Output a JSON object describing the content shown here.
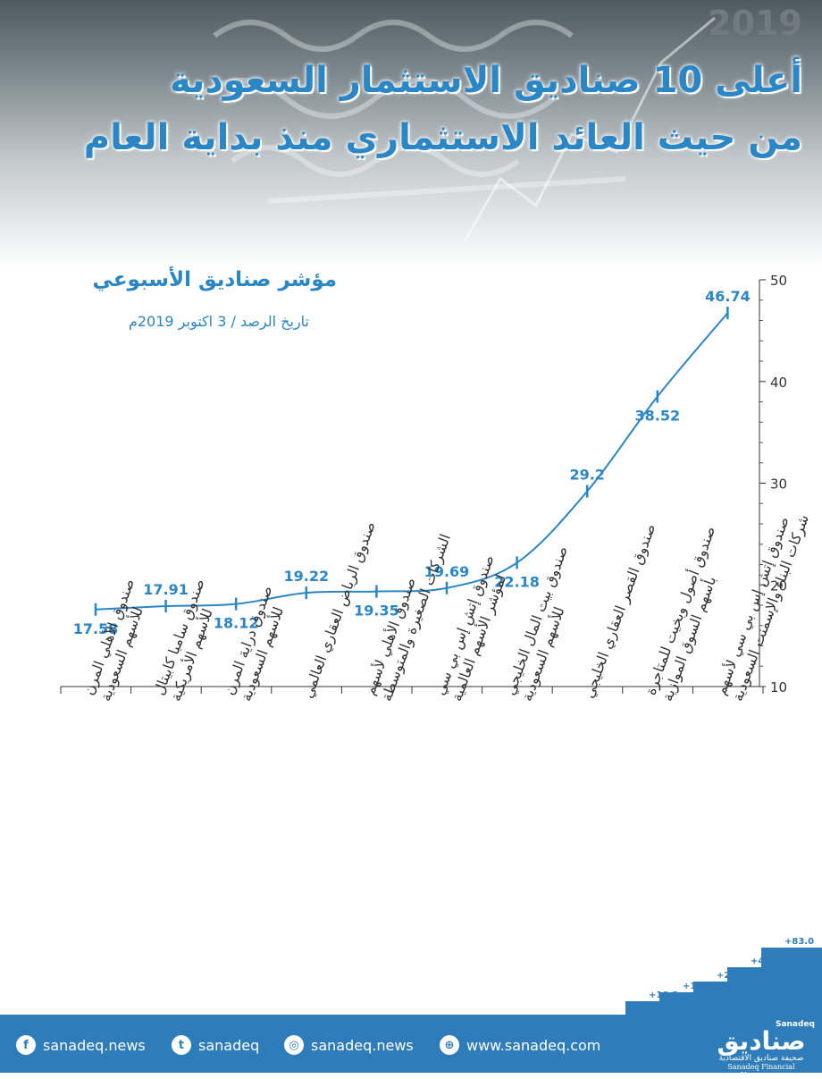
{
  "header": {
    "year": "2019",
    "title_line1": "أعلى 10 صناديق الاستثمار السعودية",
    "title_line2": "من حيث العائد الاستثماري منذ بداية العام"
  },
  "chart_meta": {
    "title": "مؤشر صناديق الأسبوعي",
    "subtitle": "تاريخ الرصد / 3 اكتوبر 2019م"
  },
  "chart_data": {
    "type": "line",
    "title": "مؤشر صناديق الأسبوعي",
    "subtitle": "تاريخ الرصد / 3 اكتوبر 2019م",
    "xlabel": "",
    "ylabel": "",
    "ylim": [
      10,
      50
    ],
    "yticks": [
      10,
      20,
      30,
      40,
      50
    ],
    "y_axis_side": "right",
    "grid": false,
    "categories": [
      [
        "صندوق الأهلي المرن",
        "للأسهم السعودية"
      ],
      [
        "صندوق سامبا كابيتال",
        "للأسهم الأمريكية"
      ],
      [
        "صندوق دراية المرن",
        "للأسهم السعودية"
      ],
      [
        "صندوق الرياض العقاري العالمي"
      ],
      [
        "صندوق الأهلي لأسهم",
        "الشركات الصغيرة والمتوسطة"
      ],
      [
        "صندوق إتش إس بي سي",
        "لمؤشر الأسهم العالمية"
      ],
      [
        "صندوق بيت المال الخليجي",
        "للأسهم السعودية"
      ],
      [
        "صندوق القصر العقاري الخليجي"
      ],
      [
        "صندوق أصول وبخيت للمتاجرة",
        "بأسهم السوق الموازية"
      ],
      [
        "صندوق إتش إس بي سي لأسهم",
        "شركات البناء والإسمنت السعودية"
      ]
    ],
    "values": [
      17.58,
      17.91,
      18.12,
      19.22,
      19.35,
      19.69,
      22.18,
      29.2,
      38.52,
      46.74
    ],
    "value_labels": [
      "17.58",
      "17.91",
      "18.12",
      "19.22",
      "19.35",
      "19.69",
      "22.18",
      "29.2",
      "38.52",
      "46.74"
    ],
    "line_color": "#2a86c4"
  },
  "decoration": {
    "stair_labels": [
      "+10.3",
      "+12.0",
      "+22.6",
      "+41.9",
      "+83.0"
    ]
  },
  "footer": {
    "facebook_icon": "facebook-icon",
    "facebook": "sanadeq.news",
    "twitter_icon": "twitter-icon",
    "twitter": "sanadeq",
    "instagram_icon": "instagram-icon",
    "instagram": "sanadeq.news",
    "web_icon": "globe-icon",
    "website": "www.sanadeq.com",
    "brand_small": "Sanadeq",
    "brand_name": "صناديق",
    "brand_tag_ar": "صحيفة صناديق الاقتصادية",
    "brand_tag_en": "Sanadeq Financial Newspaper",
    "color": "#2e7dba"
  }
}
